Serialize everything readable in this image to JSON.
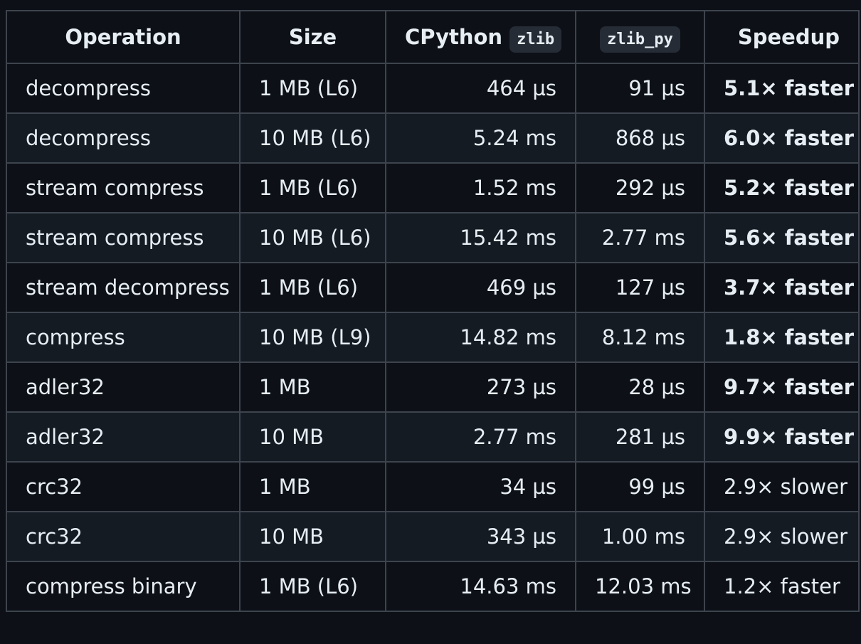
{
  "table": {
    "headers": {
      "operation": "Operation",
      "size": "Size",
      "cpython": "CPython",
      "cpython_code": "zlib",
      "zlib_py": "zlib_py",
      "speedup": "Speedup"
    },
    "rows": [
      {
        "operation": "decompress",
        "size": "1 MB (L6)",
        "cpython": "464 µs",
        "zlib_py": "91 µs",
        "speedup": "5.1× faster",
        "bold": true
      },
      {
        "operation": "decompress",
        "size": "10 MB (L6)",
        "cpython": "5.24 ms",
        "zlib_py": "868 µs",
        "speedup": "6.0× faster",
        "bold": true
      },
      {
        "operation": "stream compress",
        "size": "1 MB (L6)",
        "cpython": "1.52 ms",
        "zlib_py": "292 µs",
        "speedup": "5.2× faster",
        "bold": true
      },
      {
        "operation": "stream compress",
        "size": "10 MB (L6)",
        "cpython": "15.42 ms",
        "zlib_py": "2.77 ms",
        "speedup": "5.6× faster",
        "bold": true
      },
      {
        "operation": "stream decompress",
        "size": "1 MB (L6)",
        "cpython": "469 µs",
        "zlib_py": "127 µs",
        "speedup": "3.7× faster",
        "bold": true
      },
      {
        "operation": "compress",
        "size": "10 MB (L9)",
        "cpython": "14.82 ms",
        "zlib_py": "8.12 ms",
        "speedup": "1.8× faster",
        "bold": true
      },
      {
        "operation": "adler32",
        "size": "1 MB",
        "cpython": "273 µs",
        "zlib_py": "28 µs",
        "speedup": "9.7× faster",
        "bold": true
      },
      {
        "operation": "adler32",
        "size": "10 MB",
        "cpython": "2.77 ms",
        "zlib_py": "281 µs",
        "speedup": "9.9× faster",
        "bold": true
      },
      {
        "operation": "crc32",
        "size": "1 MB",
        "cpython": "34 µs",
        "zlib_py": "99 µs",
        "speedup": "2.9× slower",
        "bold": false
      },
      {
        "operation": "crc32",
        "size": "10 MB",
        "cpython": "343 µs",
        "zlib_py": "1.00 ms",
        "speedup": "2.9× slower",
        "bold": false
      },
      {
        "operation": "compress binary",
        "size": "1 MB (L6)",
        "cpython": "14.63 ms",
        "zlib_py": "12.03 ms",
        "speedup": "1.2× faster",
        "bold": false
      }
    ]
  }
}
